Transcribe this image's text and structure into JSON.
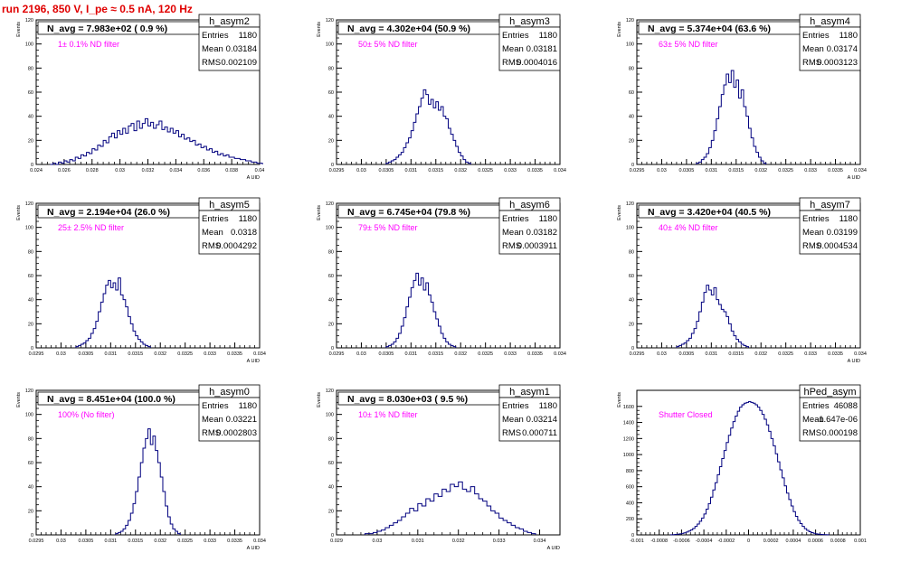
{
  "header": {
    "title": "run 2196,   850 V, I_pe ≈ 0.5 nA, 120 Hz"
  },
  "colors": {
    "title": "#e00000",
    "histogram": "#00007f",
    "annotation": "#ff00ff",
    "grid": "#000000"
  },
  "chart_data": [
    {
      "type": "histogram",
      "name": "h_asym2",
      "y_axis_label": "Events",
      "x_axis_label": "A UID",
      "headline": "N_avg = 7.983e+02 ( 0.9 %)",
      "annotation": "1± 0.1% ND filter",
      "stats": {
        "Entries": "1180",
        "Mean": "0.03184",
        "RMS": "0.002109"
      },
      "xlim": [
        0.024,
        0.04
      ],
      "ylim": [
        0,
        120
      ],
      "xticks": [
        "0.024",
        "0.026",
        "0.028",
        "0.03",
        "0.032",
        "0.034",
        "0.036",
        "0.038",
        "0.04"
      ],
      "yticks": [
        "0",
        "20",
        "40",
        "60",
        "80",
        "100",
        "120"
      ],
      "x_start": 0.025,
      "bin_width": 0.0002,
      "values": [
        0,
        1,
        0,
        2,
        1,
        3,
        2,
        4,
        3,
        6,
        5,
        8,
        7,
        10,
        9,
        13,
        12,
        16,
        15,
        20,
        18,
        23,
        26,
        22,
        28,
        25,
        30,
        26,
        32,
        34,
        28,
        36,
        30,
        34,
        38,
        32,
        35,
        30,
        33,
        36,
        29,
        31,
        27,
        30,
        26,
        28,
        23,
        25,
        21,
        22,
        19,
        20,
        16,
        17,
        14,
        15,
        12,
        13,
        10,
        11,
        8,
        9,
        7,
        8,
        6,
        6,
        5,
        5,
        4,
        4,
        3,
        3,
        2,
        2,
        1,
        1
      ]
    },
    {
      "type": "histogram",
      "name": "h_asym3",
      "y_axis_label": "Events",
      "x_axis_label": "",
      "headline": "N_avg = 4.302e+04 (50.9 %)",
      "annotation": "50± 5% ND filter",
      "stats": {
        "Entries": "1180",
        "Mean": "0.03181",
        "RMS": "0.0004016"
      },
      "xlim": [
        0.0295,
        0.034
      ],
      "ylim": [
        0,
        120
      ],
      "xticks": [
        "0.0295",
        "0.03",
        "0.0305",
        "0.031",
        "0.0315",
        "0.032",
        "0.0325",
        "0.033",
        "0.0335",
        "0.034"
      ],
      "yticks": [
        "0",
        "20",
        "40",
        "60",
        "80",
        "100",
        "120"
      ],
      "x_start": 0.0305,
      "bin_width": 5e-05,
      "values": [
        1,
        2,
        3,
        4,
        6,
        8,
        10,
        14,
        18,
        22,
        28,
        35,
        42,
        48,
        55,
        62,
        58,
        50,
        54,
        47,
        52,
        45,
        48,
        40,
        38,
        30,
        25,
        20,
        15,
        10,
        7,
        4,
        2,
        1
      ]
    },
    {
      "type": "histogram",
      "name": "h_asym4",
      "y_axis_label": "Events",
      "x_axis_label": "A UID",
      "headline": "N_avg = 5.374e+04 (63.6 %)",
      "annotation": "63± 5% ND filter",
      "stats": {
        "Entries": "1180",
        "Mean": "0.03174",
        "RMS": "0.0003123"
      },
      "xlim": [
        0.0295,
        0.034
      ],
      "ylim": [
        0,
        120
      ],
      "xticks": [
        "0.0295",
        "0.03",
        "0.0305",
        "0.031",
        "0.0315",
        "0.032",
        "0.0325",
        "0.033",
        "0.0335",
        "0.034"
      ],
      "yticks": [
        "0",
        "20",
        "40",
        "60",
        "80",
        "100",
        "120"
      ],
      "x_start": 0.0307,
      "bin_width": 5e-05,
      "values": [
        1,
        2,
        4,
        6,
        9,
        14,
        20,
        28,
        38,
        48,
        58,
        66,
        75,
        68,
        78,
        64,
        70,
        55,
        62,
        48,
        40,
        30,
        22,
        15,
        10,
        6,
        3,
        1
      ]
    },
    {
      "type": "histogram",
      "name": "h_asym5",
      "y_axis_label": "Events",
      "x_axis_label": "A UID",
      "headline": "N_avg = 2.194e+04 (26.0 %)",
      "annotation": "25± 2.5% ND filter",
      "stats": {
        "Entries": "1180",
        "Mean": "0.0318",
        "RMS": "0.0004292"
      },
      "xlim": [
        0.0295,
        0.034
      ],
      "ylim": [
        0,
        120
      ],
      "xticks": [
        "0.0295",
        "0.03",
        "0.0305",
        "0.031",
        "0.0315",
        "0.032",
        "0.0325",
        "0.033",
        "0.0335",
        "0.034"
      ],
      "yticks": [
        "0",
        "20",
        "40",
        "60",
        "80",
        "100",
        "120"
      ],
      "x_start": 0.0303,
      "bin_width": 5e-05,
      "values": [
        1,
        2,
        3,
        4,
        6,
        8,
        12,
        16,
        22,
        30,
        38,
        45,
        52,
        56,
        50,
        54,
        48,
        58,
        44,
        40,
        34,
        26,
        20,
        14,
        10,
        7,
        5,
        3,
        2,
        1
      ]
    },
    {
      "type": "histogram",
      "name": "h_asym6",
      "y_axis_label": "Events",
      "x_axis_label": "",
      "headline": "N_avg = 6.745e+04 (79.8 %)",
      "annotation": "79± 5% ND filter",
      "stats": {
        "Entries": "1180",
        "Mean": "0.03182",
        "RMS": "0.0003911"
      },
      "xlim": [
        0.0295,
        0.034
      ],
      "ylim": [
        0,
        120
      ],
      "xticks": [
        "0.0295",
        "0.03",
        "0.0305",
        "0.031",
        "0.0315",
        "0.032",
        "0.0325",
        "0.033",
        "0.0335",
        "0.034"
      ],
      "yticks": [
        "0",
        "20",
        "40",
        "60",
        "80",
        "100",
        "120"
      ],
      "x_start": 0.0305,
      "bin_width": 5e-05,
      "values": [
        1,
        2,
        3,
        5,
        8,
        12,
        18,
        25,
        34,
        42,
        50,
        56,
        62,
        52,
        58,
        48,
        54,
        44,
        38,
        30,
        24,
        18,
        12,
        8,
        5,
        3,
        2,
        1
      ]
    },
    {
      "type": "histogram",
      "name": "h_asym7",
      "y_axis_label": "Events",
      "x_axis_label": "A UID",
      "headline": "N_avg = 3.420e+04 (40.5 %)",
      "annotation": "40± 4% ND filter",
      "stats": {
        "Entries": "1180",
        "Mean": "0.03199",
        "RMS": "0.0004534"
      },
      "xlim": [
        0.0295,
        0.034
      ],
      "ylim": [
        0,
        120
      ],
      "xticks": [
        "0.0295",
        "0.03",
        "0.0305",
        "0.031",
        "0.0315",
        "0.032",
        "0.0325",
        "0.033",
        "0.0335",
        "0.034"
      ],
      "yticks": [
        "0",
        "20",
        "40",
        "60",
        "80",
        "100",
        "120"
      ],
      "x_start": 0.0303,
      "bin_width": 5e-05,
      "values": [
        1,
        2,
        3,
        4,
        6,
        8,
        12,
        16,
        22,
        30,
        38,
        46,
        52,
        48,
        44,
        50,
        40,
        36,
        32,
        30,
        26,
        20,
        14,
        10,
        7,
        5,
        3,
        2,
        1
      ]
    },
    {
      "type": "histogram",
      "name": "h_asym0",
      "y_axis_label": "Events",
      "x_axis_label": "A UID",
      "headline": "N_avg = 8.451e+04 (100.0 %)",
      "annotation": "100% (No filter)",
      "stats": {
        "Entries": "1180",
        "Mean": "0.03221",
        "RMS": "0.0002803"
      },
      "xlim": [
        0.0295,
        0.034
      ],
      "ylim": [
        0,
        120
      ],
      "xticks": [
        "0.0295",
        "0.03",
        "0.0305",
        "0.031",
        "0.0315",
        "0.032",
        "0.0325",
        "0.033",
        "0.0335",
        "0.034"
      ],
      "yticks": [
        "0",
        "20",
        "40",
        "60",
        "80",
        "100",
        "120"
      ],
      "x_start": 0.0311,
      "bin_width": 5e-05,
      "values": [
        1,
        2,
        3,
        5,
        8,
        12,
        18,
        26,
        36,
        48,
        60,
        72,
        80,
        88,
        75,
        82,
        70,
        60,
        48,
        36,
        24,
        15,
        9,
        5,
        3,
        1
      ]
    },
    {
      "type": "histogram",
      "name": "h_asym1",
      "y_axis_label": "Events",
      "x_axis_label": "A UID",
      "headline": "N_avg = 8.030e+03 ( 9.5 %)",
      "annotation": "10± 1% ND filter",
      "stats": {
        "Entries": "1180",
        "Mean": "0.03214",
        "RMS": "0.000711"
      },
      "xlim": [
        0.029,
        0.0345
      ],
      "ylim": [
        0,
        120
      ],
      "xticks": [
        "0.029",
        "0.03",
        "0.031",
        "0.032",
        "0.033",
        "0.034"
      ],
      "yticks": [
        "0",
        "20",
        "40",
        "60",
        "80",
        "100",
        "120"
      ],
      "x_start": 0.0297,
      "bin_width": 0.0001,
      "values": [
        1,
        1,
        2,
        3,
        4,
        6,
        8,
        10,
        12,
        15,
        18,
        22,
        20,
        26,
        24,
        30,
        28,
        34,
        32,
        38,
        36,
        42,
        40,
        44,
        38,
        36,
        40,
        34,
        30,
        28,
        24,
        20,
        18,
        14,
        12,
        10,
        8,
        6,
        5,
        3,
        2,
        1
      ]
    },
    {
      "type": "histogram",
      "name": "hPed_asym",
      "y_axis_label": "Events",
      "x_axis_label": "",
      "headline": "",
      "annotation": "Shutter Closed",
      "stats": {
        "Entries": "46088",
        "Mean": "-1.647e-06",
        "RMS": "0.000198"
      },
      "xlim": [
        -0.001,
        0.001
      ],
      "ylim": [
        0,
        1800
      ],
      "xticks": [
        "-0.001",
        "-0.0008",
        "-0.0006",
        "-0.0004",
        "-0.0002",
        "0",
        "0.0002",
        "0.0004",
        "0.0006",
        "0.0008",
        "0.001"
      ],
      "yticks": [
        "0",
        "200",
        "400",
        "600",
        "800",
        "1000",
        "1200",
        "1400",
        "1600"
      ],
      "x_start": -0.0007,
      "bin_width": 2e-05,
      "values": [
        2,
        3,
        5,
        8,
        12,
        18,
        25,
        35,
        48,
        62,
        80,
        105,
        135,
        170,
        210,
        260,
        320,
        390,
        470,
        560,
        650,
        750,
        850,
        950,
        1050,
        1150,
        1240,
        1330,
        1410,
        1480,
        1540,
        1590,
        1620,
        1640,
        1650,
        1660,
        1650,
        1640,
        1620,
        1590,
        1550,
        1500,
        1440,
        1370,
        1290,
        1200,
        1110,
        1010,
        910,
        810,
        710,
        610,
        520,
        440,
        360,
        290,
        230,
        180,
        140,
        105,
        78,
        56,
        40,
        28,
        19,
        13,
        9,
        6,
        4,
        3,
        2
      ]
    }
  ]
}
